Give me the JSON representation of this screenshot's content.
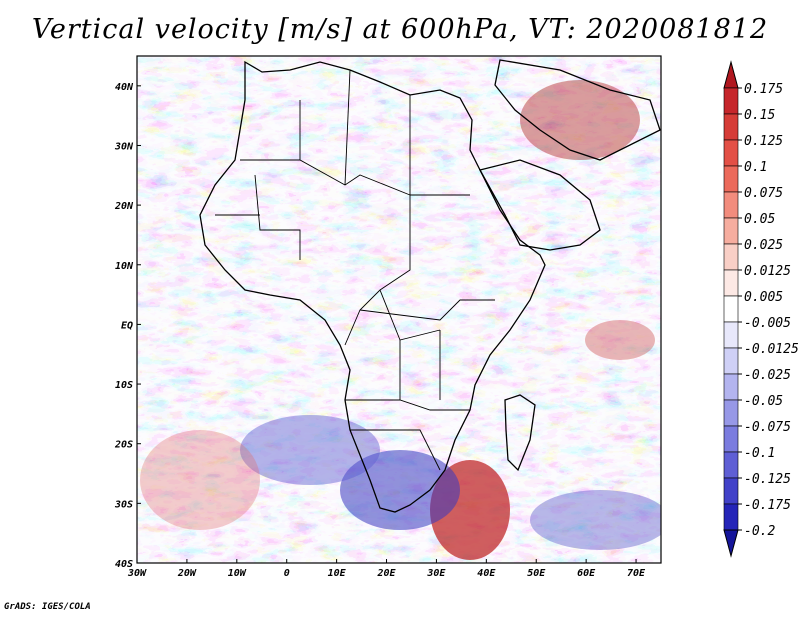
{
  "title": "Vertical velocity [m/s] at 600hPa, VT: 2020081812",
  "credit": "GrADS: IGES/COLA",
  "map": {
    "lon_ticks": [
      {
        "value": -30,
        "label": "30W"
      },
      {
        "value": -20,
        "label": "20W"
      },
      {
        "value": -10,
        "label": "10W"
      },
      {
        "value": 0,
        "label": "0"
      },
      {
        "value": 10,
        "label": "10E"
      },
      {
        "value": 20,
        "label": "20E"
      },
      {
        "value": 30,
        "label": "30E"
      },
      {
        "value": 40,
        "label": "40E"
      },
      {
        "value": 50,
        "label": "50E"
      },
      {
        "value": 60,
        "label": "60E"
      },
      {
        "value": 70,
        "label": "70E"
      }
    ],
    "lat_ticks": [
      {
        "value": 40,
        "label": "40N"
      },
      {
        "value": 30,
        "label": "30N"
      },
      {
        "value": 20,
        "label": "20N"
      },
      {
        "value": 10,
        "label": "10N"
      },
      {
        "value": 0,
        "label": "EQ"
      },
      {
        "value": -10,
        "label": "10S"
      },
      {
        "value": -20,
        "label": "20S"
      },
      {
        "value": -30,
        "label": "30S"
      },
      {
        "value": -40,
        "label": "40S"
      }
    ],
    "lon_range": [
      -30,
      75
    ],
    "lat_range": [
      -40,
      45
    ]
  },
  "colorbar": {
    "levels": [
      "0.175",
      "0.15",
      "0.125",
      "0.1",
      "0.075",
      "0.05",
      "0.025",
      "0.0125",
      "0.005",
      "-0.005",
      "-0.0125",
      "-0.025",
      "-0.05",
      "-0.075",
      "-0.1",
      "-0.125",
      "-0.175",
      "-0.2"
    ],
    "colors": [
      "#b0171f",
      "#c6262b",
      "#d63c37",
      "#e35046",
      "#ec6a5b",
      "#f28c7d",
      "#f6ad9f",
      "#f9cfc6",
      "#fde9e5",
      "#ffffff",
      "#e8e8fb",
      "#cfd0f6",
      "#b3b4ef",
      "#9798e7",
      "#7b7cdf",
      "#5f5fd5",
      "#4242c9",
      "#2525b8",
      "#15159a"
    ]
  },
  "chart_data": {
    "type": "heatmap",
    "title": "Vertical velocity [m/s] at 600hPa, VT: 2020081812",
    "variable": "Vertical velocity",
    "units": "m/s",
    "level": "600hPa",
    "valid_time": "2020081812",
    "x_range": [
      -30,
      75
    ],
    "y_range": [
      -40,
      45
    ],
    "xlabel": "",
    "ylabel": ""
  }
}
